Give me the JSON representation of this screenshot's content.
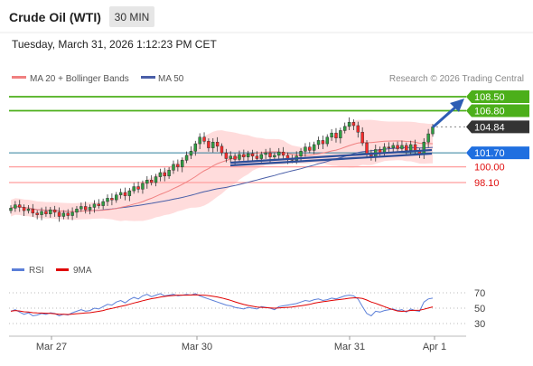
{
  "header": {
    "title": "Crude Oil (WTI)",
    "timeframe": "30 MIN",
    "datetime": "Tuesday, March 31, 2026 1:12:23 PM CET"
  },
  "legend": {
    "ma20": "MA 20 + Bollinger Bands",
    "ma50": "MA 50",
    "credit": "Research © 2026 Trading Central",
    "rsi": "RSI",
    "rsi_ma": "9MA"
  },
  "colors": {
    "up": "#2e9e42",
    "down": "#ff2a2a",
    "candle_outline": "#333333",
    "bollinger_fill": "#ffd4d4",
    "ma20": "#f08080",
    "ma50": "#4a5fa8",
    "resistance": "#4caf1a",
    "support": "#ff9e9e",
    "pivot": "#2f7f9c",
    "current": "#333333",
    "rsi_line": "#5b7fd8",
    "rsi_ma": "#e00000",
    "arrow": "#2d5db4"
  },
  "chart_data": [
    {
      "type": "candlestick",
      "x_ticks": [
        "Mar 27",
        "Mar 30",
        "Mar 31",
        "Apr 1"
      ],
      "levels": [
        {
          "value": 108.5,
          "label": "108.50",
          "kind": "resistance"
        },
        {
          "value": 106.8,
          "label": "106.80",
          "kind": "resistance"
        },
        {
          "value": 104.84,
          "label": "104.84",
          "kind": "current"
        },
        {
          "value": 101.7,
          "label": "101.70",
          "kind": "pivot"
        },
        {
          "value": 100.0,
          "label": "100.00",
          "kind": "support"
        },
        {
          "value": 98.1,
          "label": "98.10",
          "kind": "support"
        }
      ],
      "close_approx": [
        95.0,
        95.4,
        95.1,
        94.7,
        94.9,
        94.4,
        94.2,
        94.6,
        94.3,
        94.8,
        94.5,
        94.0,
        94.4,
        94.1,
        94.5,
        94.9,
        95.2,
        94.8,
        95.1,
        95.5,
        95.3,
        95.8,
        96.2,
        96.0,
        96.6,
        96.9,
        96.5,
        97.1,
        97.6,
        97.3,
        98.0,
        98.4,
        98.1,
        98.8,
        99.3,
        98.9,
        99.6,
        100.3,
        100.0,
        100.8,
        101.4,
        101.9,
        102.8,
        103.6,
        103.1,
        102.3,
        103.0,
        102.5,
        101.7,
        101.0,
        101.3,
        100.9,
        101.5,
        101.2,
        101.6,
        101.3,
        101.0,
        101.5,
        101.7,
        101.2,
        101.4,
        101.8,
        101.4,
        101.0,
        100.8,
        101.3,
        101.9,
        102.4,
        102.0,
        102.7,
        103.2,
        102.8,
        103.6,
        104.1,
        103.5,
        104.4,
        104.9,
        105.4,
        105.0,
        104.2,
        102.9,
        101.6,
        101.3,
        102.1,
        101.7,
        102.4,
        102.3,
        102.6,
        102.2,
        102.6,
        102.0,
        102.7,
        101.9,
        101.5,
        103.0,
        104.0,
        104.84
      ]
    },
    {
      "type": "line",
      "name": "RSI",
      "ylim": [
        20,
        80
      ],
      "y_ticks": [
        70,
        50,
        30
      ],
      "values_approx": [
        46,
        48,
        45,
        42,
        44,
        40,
        41,
        43,
        42,
        44,
        43,
        40,
        42,
        41,
        44,
        46,
        48,
        46,
        47,
        50,
        49,
        52,
        55,
        54,
        58,
        60,
        57,
        61,
        64,
        62,
        66,
        68,
        65,
        67,
        69,
        66,
        67,
        68,
        66,
        67,
        68,
        67,
        69,
        66,
        64,
        62,
        60,
        58,
        56,
        54,
        53,
        51,
        50,
        49,
        51,
        50,
        49,
        52,
        51,
        50,
        48,
        52,
        53,
        54,
        55,
        56,
        58,
        60,
        59,
        61,
        62,
        60,
        61,
        63,
        62,
        64,
        66,
        67,
        66,
        62,
        52,
        43,
        40,
        46,
        45,
        47,
        48,
        49,
        47,
        48,
        45,
        49,
        47,
        46,
        58,
        62,
        63
      ]
    }
  ]
}
